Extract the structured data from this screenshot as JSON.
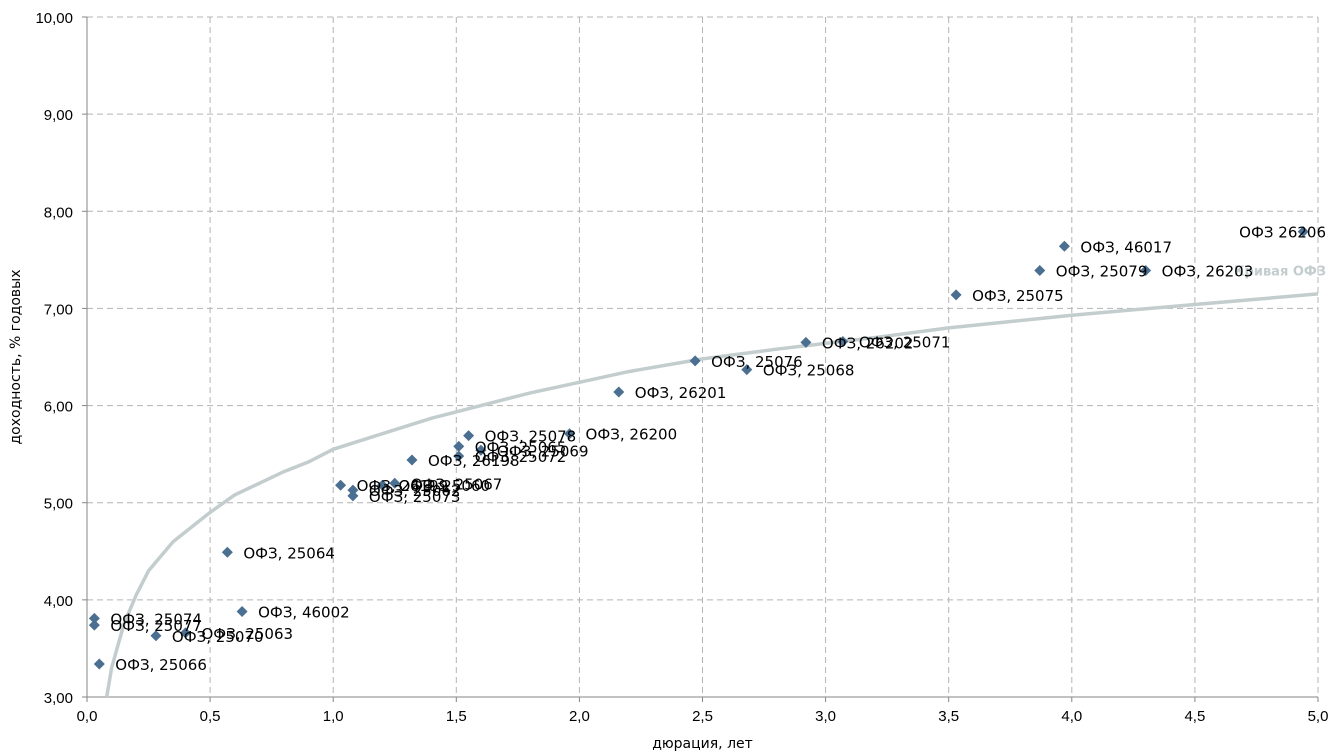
{
  "chart_data": {
    "type": "scatter",
    "title": "",
    "xlabel": "дюрация, лет",
    "ylabel": "доходность, % годовых",
    "xlim": [
      0,
      5
    ],
    "ylim": [
      3,
      10
    ],
    "x_ticks": [
      "0,0",
      "0,5",
      "1,0",
      "1,5",
      "2,0",
      "2,5",
      "3,0",
      "3,5",
      "4,0",
      "4,5",
      "5,0"
    ],
    "y_ticks": [
      "3,00",
      "4,00",
      "5,00",
      "6,00",
      "7,00",
      "8,00",
      "9,00",
      "10,00"
    ],
    "grid": true,
    "marker_color": "#4a6f91",
    "curve_color": "#c3cdcd",
    "points": [
      {
        "label": "ОФЗ, 25074",
        "x": 0.03,
        "y": 3.81
      },
      {
        "label": "ОФЗ, 25077",
        "x": 0.03,
        "y": 3.74
      },
      {
        "label": "ОФЗ, 25066",
        "x": 0.05,
        "y": 3.34
      },
      {
        "label": "ОФЗ, 25070",
        "x": 0.28,
        "y": 3.63
      },
      {
        "label": "ОФЗ, 25063",
        "x": 0.4,
        "y": 3.66
      },
      {
        "label": "ОФЗ, 25064",
        "x": 0.57,
        "y": 4.49
      },
      {
        "label": "ОФЗ, 46002",
        "x": 0.63,
        "y": 3.88
      },
      {
        "label": "ОФЗ, 26199",
        "x": 1.03,
        "y": 5.18
      },
      {
        "label": "ОФЗ, 25062",
        "x": 1.08,
        "y": 5.13
      },
      {
        "label": "ОФЗ, 25073",
        "x": 1.08,
        "y": 5.07
      },
      {
        "label": "ОФЗ, 25060",
        "x": 1.2,
        "y": 5.18
      },
      {
        "label": "ОФЗ, 25067",
        "x": 1.25,
        "y": 5.2
      },
      {
        "label": "ОФЗ, 26198",
        "x": 1.32,
        "y": 5.44
      },
      {
        "label": "ОФЗ, 25072",
        "x": 1.51,
        "y": 5.48
      },
      {
        "label": "ОФЗ, 25065",
        "x": 1.51,
        "y": 5.58
      },
      {
        "label": "ОФЗ, 25078",
        "x": 1.55,
        "y": 5.69
      },
      {
        "label": "ОФЗ, 25069",
        "x": 1.6,
        "y": 5.54
      },
      {
        "label": "ОФЗ, 26200",
        "x": 1.96,
        "y": 5.71
      },
      {
        "label": "ОФЗ, 26201",
        "x": 2.16,
        "y": 6.14
      },
      {
        "label": "ОФЗ, 25076",
        "x": 2.47,
        "y": 6.46
      },
      {
        "label": "ОФЗ, 25068",
        "x": 2.68,
        "y": 6.37
      },
      {
        "label": "ОФЗ, 26202",
        "x": 2.92,
        "y": 6.65
      },
      {
        "label": "ОФЗ, 25071",
        "x": 3.07,
        "y": 6.66
      },
      {
        "label": "ОФЗ, 25075",
        "x": 3.53,
        "y": 7.14
      },
      {
        "label": "ОФЗ, 25079",
        "x": 3.87,
        "y": 7.39
      },
      {
        "label": "ОФЗ, 46017",
        "x": 3.97,
        "y": 7.64
      },
      {
        "label": "ОФЗ, 26203",
        "x": 4.3,
        "y": 7.39
      },
      {
        "label": "ОФЗ 26206",
        "x": 4.94,
        "y": 7.79
      }
    ],
    "curve": {
      "name": "Кривая ОФЗ",
      "x": [
        0.08,
        0.1,
        0.15,
        0.2,
        0.25,
        0.3,
        0.35,
        0.4,
        0.5,
        0.6,
        0.7,
        0.8,
        0.9,
        1.0,
        1.2,
        1.4,
        1.6,
        1.8,
        2.0,
        2.2,
        2.5,
        2.8,
        3.0,
        3.2,
        3.5,
        4.0,
        4.5,
        5.0
      ],
      "y": [
        3.0,
        3.3,
        3.75,
        4.05,
        4.3,
        4.45,
        4.6,
        4.7,
        4.9,
        5.08,
        5.2,
        5.32,
        5.42,
        5.55,
        5.71,
        5.87,
        6.0,
        6.13,
        6.24,
        6.35,
        6.48,
        6.58,
        6.64,
        6.7,
        6.8,
        6.93,
        7.04,
        7.15
      ]
    }
  }
}
